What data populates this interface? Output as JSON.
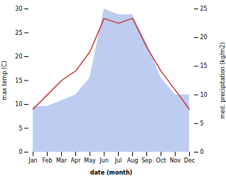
{
  "chart_data": {
    "type": "line",
    "categories": [
      "Jan",
      "Feb",
      "Mar",
      "Apr",
      "May",
      "Jun",
      "Jul",
      "Aug",
      "Sep",
      "Oct",
      "Nov",
      "Dec"
    ],
    "xlabel": "date (month)",
    "ylabel": "max temp (C)",
    "y2label": "med. precipitation (kg/m2)",
    "ylim": [
      0,
      30
    ],
    "yticks": [
      0,
      5,
      10,
      15,
      20,
      25,
      30
    ],
    "y2lim": [
      0,
      25
    ],
    "y2ticks": [
      0,
      5,
      10,
      15,
      20,
      25
    ],
    "series": [
      {
        "type": "area",
        "axis": "y2",
        "color": "#aabbee",
        "values": [
          8,
          8,
          9,
          10,
          13,
          25,
          24,
          24,
          19,
          13,
          10,
          10
        ]
      },
      {
        "type": "line",
        "color": "#cc3333",
        "values": [
          9,
          12,
          15,
          17,
          21,
          28,
          27,
          28,
          22,
          17,
          13,
          9
        ]
      }
    ]
  }
}
